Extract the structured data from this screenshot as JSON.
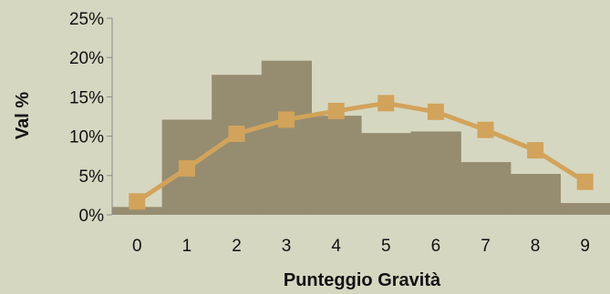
{
  "chart_data": {
    "type": "bar",
    "categories": [
      "0",
      "1",
      "2",
      "3",
      "4",
      "5",
      "6",
      "7",
      "8",
      "9"
    ],
    "series": [
      {
        "values": [
          1.0,
          12.1,
          17.8,
          19.6,
          12.6,
          10.4,
          10.6,
          6.7,
          5.2,
          1.5
        ],
        "render": "histogram",
        "color": "#968d71"
      },
      {
        "values": [
          1.7,
          5.9,
          10.3,
          12.1,
          13.2,
          14.2,
          13.1,
          10.8,
          8.2,
          4.2
        ],
        "render": "line",
        "color": "#d2a35a",
        "marker": "square"
      }
    ],
    "xlabel": "Punteggio Gravità",
    "ylabel": "Val %",
    "ylim": [
      0,
      25
    ],
    "yticks": [
      0,
      5,
      10,
      15,
      20,
      25
    ],
    "ytick_labels": [
      "0%",
      "5%",
      "10%",
      "15%",
      "20%",
      "25%"
    ],
    "grid": false,
    "legend": "none"
  }
}
